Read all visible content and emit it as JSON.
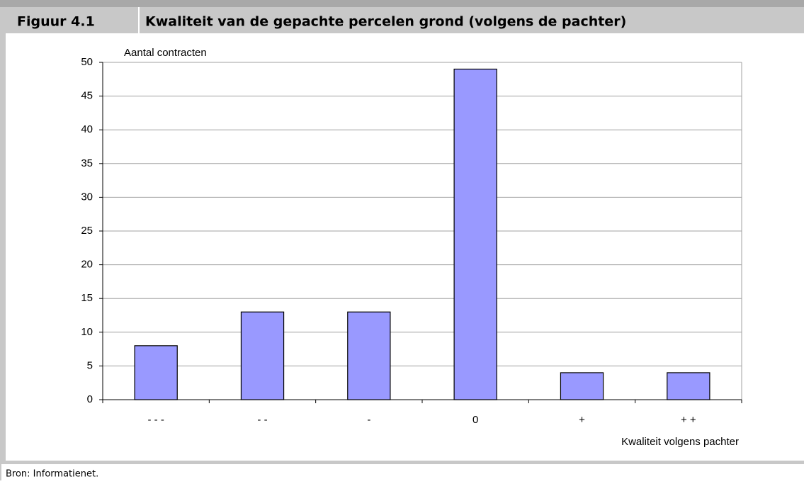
{
  "chart_data": {
    "type": "bar",
    "figure_label": "Figuur 4.1",
    "title": "Kwaliteit van de gepachte percelen grond (volgens de pachter)",
    "ylabel": "Aantal contracten",
    "xlabel": "Kwaliteit volgens pachter",
    "source": "Bron: Informatienet.",
    "categories": [
      "- - -",
      "- -",
      "-",
      "0",
      "+",
      "+ +"
    ],
    "values": [
      8,
      13,
      13,
      49,
      4,
      4
    ],
    "color": "#9999ff",
    "ylim": [
      0,
      50
    ],
    "yticks": [
      0,
      5,
      10,
      15,
      20,
      25,
      30,
      35,
      40,
      45,
      50
    ],
    "grid": true
  }
}
